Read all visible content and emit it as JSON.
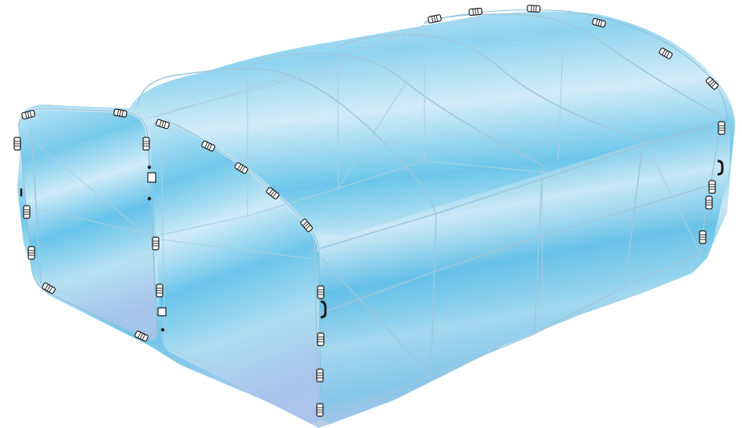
{
  "image": {
    "subject": "polytunnel-greenhouse",
    "colors": {
      "cover_top": "#d8eef8",
      "cover_mid": "#7fcdec",
      "cover_bottom": "#b3d3ec",
      "frame": "#9fc7dc",
      "clip_fill": "#ffffff",
      "clip_stroke": "#1a1a1a"
    }
  }
}
